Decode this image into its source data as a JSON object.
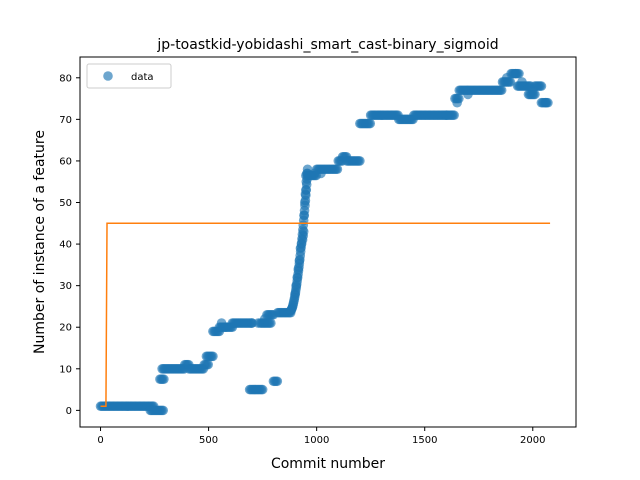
{
  "chart_data": {
    "type": "scatter",
    "title": "jp-toastkid-yobidashi_smart_cast-binary_sigmoid",
    "xlabel": "Commit number",
    "ylabel": "Number of instance of a feature",
    "xlim": [
      -95,
      2200
    ],
    "ylim": [
      -4,
      85
    ],
    "xticks": [
      0,
      500,
      1000,
      1500,
      2000
    ],
    "yticks": [
      0,
      10,
      20,
      30,
      40,
      50,
      60,
      70,
      80
    ],
    "legend": {
      "placement": "top-left",
      "entries": [
        "data"
      ]
    },
    "colors": {
      "data": "#1f77b4",
      "fit": "#ff7f0e"
    },
    "series": [
      {
        "name": "data",
        "kind": "scatter",
        "segments": [
          {
            "x0": 0,
            "x1": 250,
            "y": 1
          },
          {
            "x0": 230,
            "x1": 290,
            "y": 0
          },
          {
            "x0": 275,
            "x1": 295,
            "y": 7.5
          },
          {
            "x0": 285,
            "x1": 390,
            "y": 10
          },
          {
            "x0": 390,
            "x1": 410,
            "y": 11
          },
          {
            "x0": 410,
            "x1": 480,
            "y": 10
          },
          {
            "x0": 480,
            "x1": 500,
            "y": 11
          },
          {
            "x0": 490,
            "x1": 520,
            "y": 13
          },
          {
            "x0": 520,
            "x1": 550,
            "y": 19
          },
          {
            "x0": 550,
            "x1": 580,
            "y": 20
          },
          {
            "x0": 580,
            "x1": 610,
            "y": 20
          },
          {
            "x0": 610,
            "x1": 700,
            "y": 21
          },
          {
            "x0": 690,
            "x1": 750,
            "y": 5
          },
          {
            "x0": 740,
            "x1": 790,
            "y": 21
          },
          {
            "x0": 770,
            "x1": 800,
            "y": 23
          },
          {
            "x0": 800,
            "x1": 820,
            "y": 7
          },
          {
            "x0": 820,
            "x1": 880,
            "y": 23.5
          },
          {
            "x0": 950,
            "x1": 1000,
            "y": 56.5
          },
          {
            "x0": 1000,
            "x1": 1100,
            "y": 58
          },
          {
            "x0": 1100,
            "x1": 1120,
            "y": 60
          },
          {
            "x0": 1120,
            "x1": 1140,
            "y": 61
          },
          {
            "x0": 1140,
            "x1": 1200,
            "y": 60
          },
          {
            "x0": 1200,
            "x1": 1250,
            "y": 69
          },
          {
            "x0": 1250,
            "x1": 1380,
            "y": 71
          },
          {
            "x0": 1380,
            "x1": 1450,
            "y": 70
          },
          {
            "x0": 1450,
            "x1": 1640,
            "y": 71
          },
          {
            "x0": 1640,
            "x1": 1660,
            "y": 75
          },
          {
            "x0": 1660,
            "x1": 1700,
            "y": 77
          },
          {
            "x0": 1700,
            "x1": 1860,
            "y": 77
          },
          {
            "x0": 1860,
            "x1": 1900,
            "y": 79
          },
          {
            "x0": 1900,
            "x1": 1940,
            "y": 81
          },
          {
            "x0": 1930,
            "x1": 1990,
            "y": 78
          },
          {
            "x0": 1980,
            "x1": 2010,
            "y": 76
          },
          {
            "x0": 2010,
            "x1": 2040,
            "y": 78
          },
          {
            "x0": 2040,
            "x1": 2070,
            "y": 74
          }
        ],
        "points": [
          [
            560,
            21
          ],
          [
            700,
            21
          ],
          [
            730,
            21
          ],
          [
            760,
            22
          ],
          [
            900,
            28
          ],
          [
            905,
            30
          ],
          [
            910,
            32
          ],
          [
            915,
            34
          ],
          [
            920,
            36
          ],
          [
            925,
            39
          ],
          [
            930,
            40
          ],
          [
            935,
            41
          ],
          [
            938,
            42
          ],
          [
            940,
            43
          ],
          [
            942,
            47
          ],
          [
            945,
            50
          ],
          [
            948,
            52
          ],
          [
            950,
            53
          ],
          [
            952,
            55
          ],
          [
            955,
            57
          ],
          [
            958,
            58
          ],
          [
            990,
            57
          ],
          [
            1020,
            57
          ],
          [
            1600,
            71
          ],
          [
            1650,
            74
          ],
          [
            1700,
            76
          ],
          [
            1880,
            80
          ],
          [
            1920,
            81
          ],
          [
            1950,
            79
          ],
          [
            2000,
            77
          ],
          [
            2060,
            74
          ]
        ]
      },
      {
        "name": "fit",
        "kind": "line",
        "x": [
          0,
          20,
          25,
          30,
          2080
        ],
        "y": [
          1,
          1,
          1,
          45,
          45
        ]
      }
    ]
  }
}
